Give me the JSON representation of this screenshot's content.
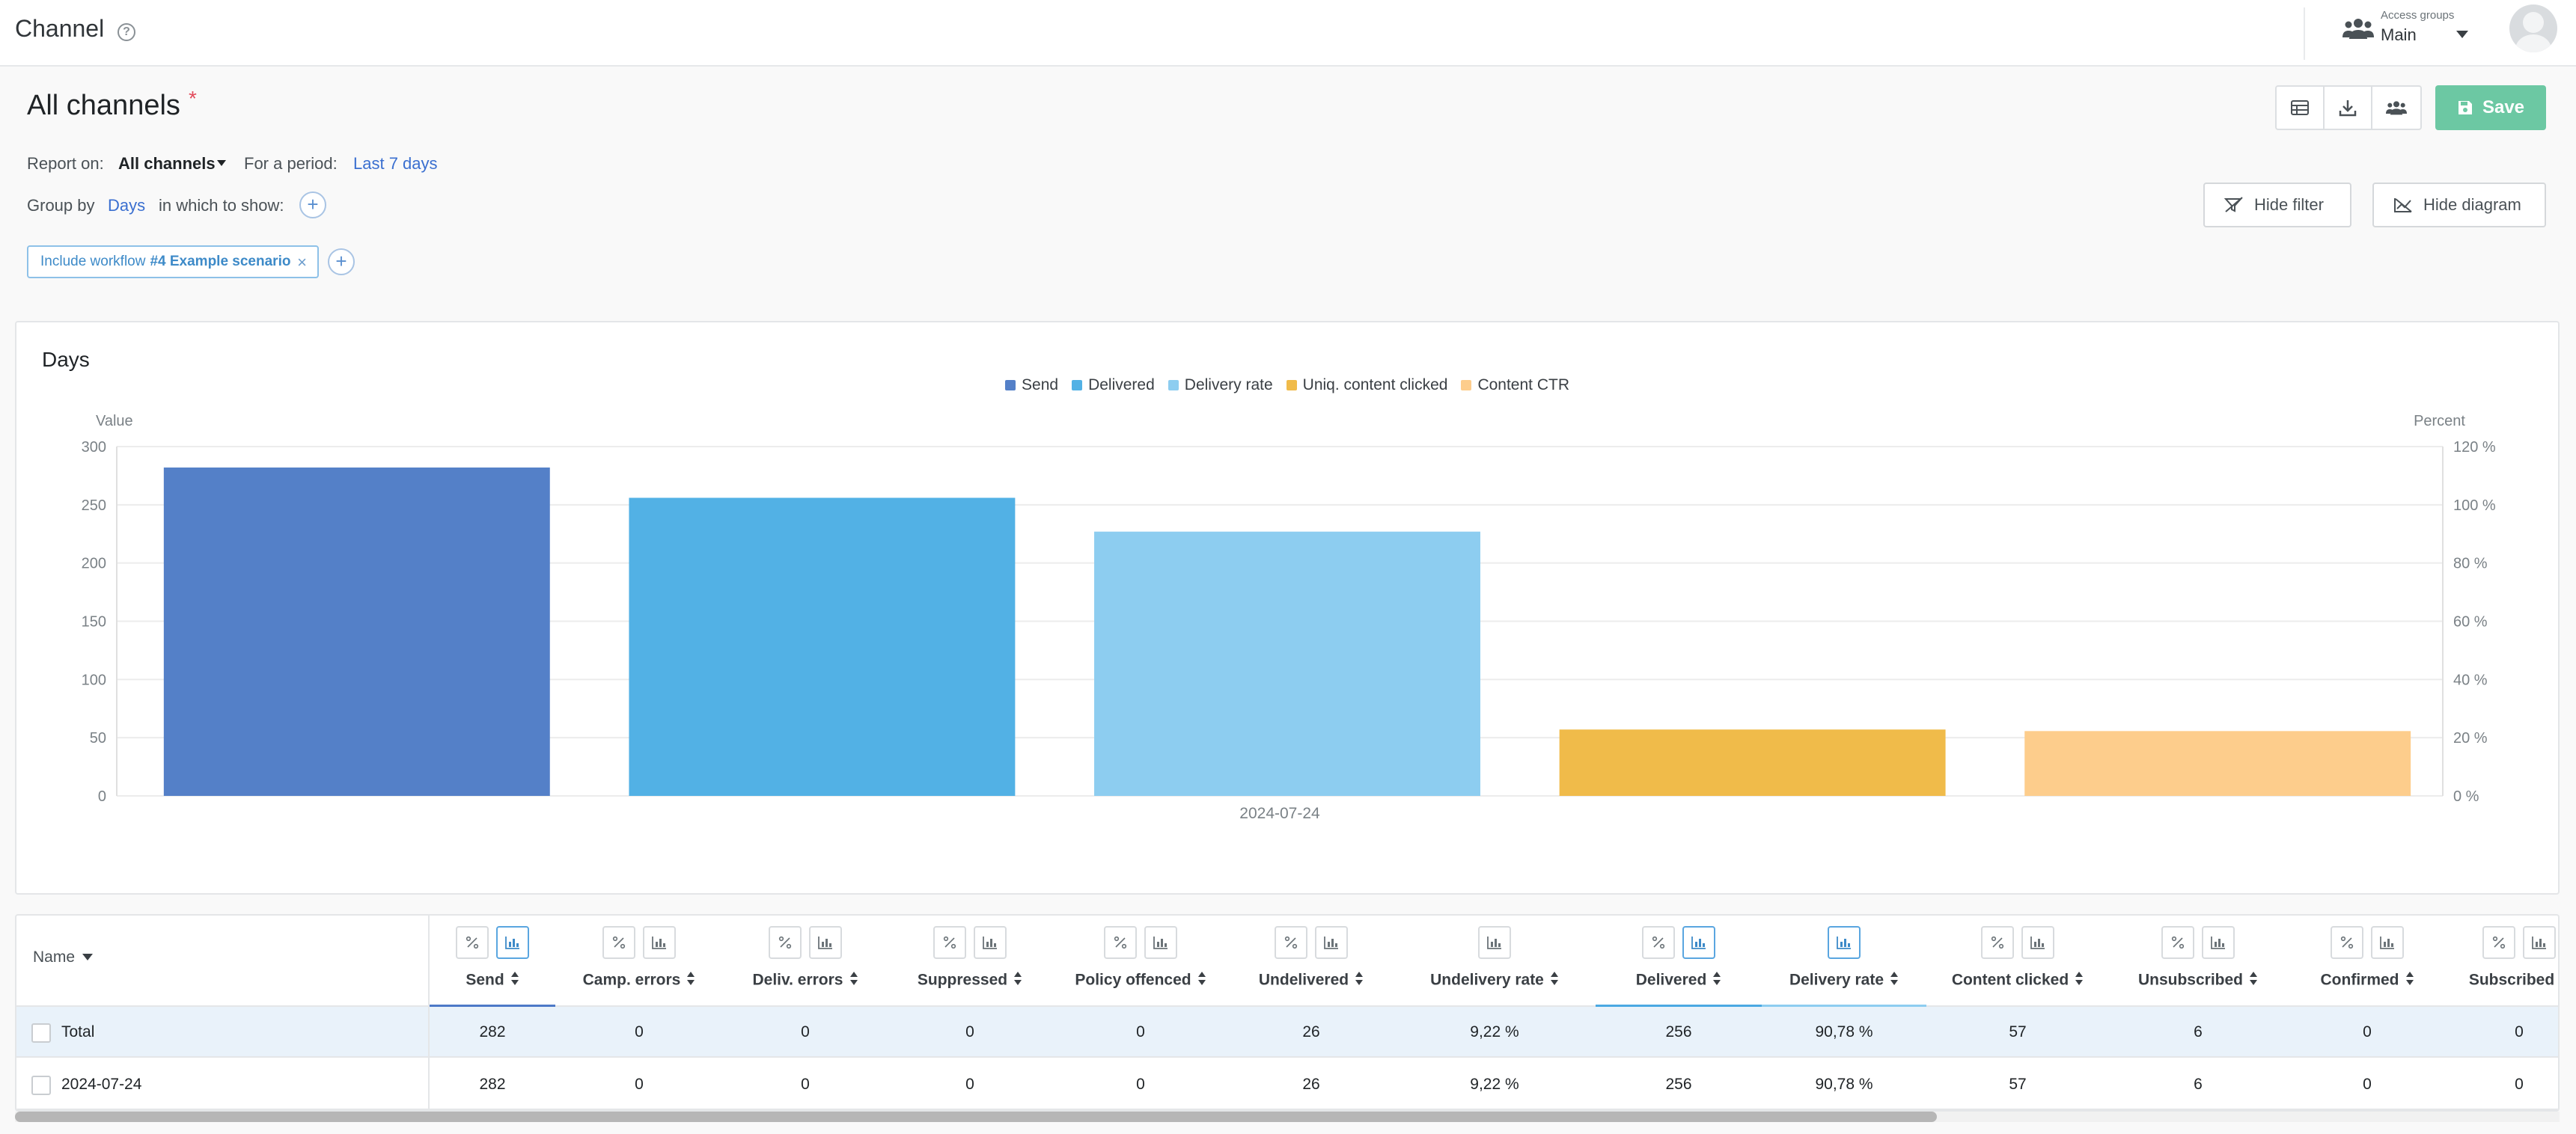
{
  "app": {
    "title": "Channel"
  },
  "access_groups": {
    "label": "Access groups",
    "value": "Main"
  },
  "page": {
    "title": "All channels",
    "asterisk": "*"
  },
  "toolbar": {
    "save_label": "Save"
  },
  "filters": {
    "report_on_label": "Report on:",
    "report_on_value": "All channels",
    "period_label": "For a period:",
    "period_value": "Last 7 days",
    "group_by_label": "Group by",
    "group_by_value": "Days",
    "show_label": "in which to show:",
    "plus": "+",
    "hide_filter": "Hide filter",
    "hide_diagram": "Hide diagram",
    "chip_prefix": "Include workflow",
    "chip_value": "#4 Example scenario",
    "chip_close": "×"
  },
  "chart_data": {
    "type": "bar",
    "title": "Days",
    "ylabel_left": "Value",
    "ylabel_right": "Percent",
    "categories": [
      "2024-07-24"
    ],
    "ylim": [
      0,
      300
    ],
    "ylim_right": [
      0,
      120
    ],
    "yticks_left": [
      "300",
      "250",
      "200",
      "150",
      "100",
      "50",
      "0"
    ],
    "yticks_right": [
      "120 %",
      "100 %",
      "80 %",
      "60 %",
      "40 %",
      "20 %",
      "0 %"
    ],
    "legend_position": "top-center",
    "grid": true,
    "series": [
      {
        "name": "Send",
        "value": 282,
        "color": "#5480c8",
        "axis": "left"
      },
      {
        "name": "Delivered",
        "value": 256,
        "color": "#52b1e5",
        "axis": "left"
      },
      {
        "name": "Delivery rate",
        "value": 90.78,
        "color": "#8dcdf0",
        "axis": "right"
      },
      {
        "name": "Uniq. content clicked",
        "value": 57,
        "color": "#f0bb4a",
        "axis": "left"
      },
      {
        "name": "Content CTR",
        "value": 22.27,
        "color": "#fdcd8c",
        "axis": "right"
      }
    ]
  },
  "table": {
    "name_header": "Name",
    "columns": [
      {
        "label": "Send",
        "icons": [
          "percent",
          "chart-active"
        ],
        "underline": "#4d79c7"
      },
      {
        "label": "Camp. errors",
        "icons": [
          "percent",
          "chart"
        ],
        "underline": ""
      },
      {
        "label": "Deliv. errors",
        "icons": [
          "percent",
          "chart"
        ],
        "underline": ""
      },
      {
        "label": "Suppressed",
        "icons": [
          "percent",
          "chart"
        ],
        "underline": ""
      },
      {
        "label": "Policy offenced",
        "icons": [
          "percent",
          "chart"
        ],
        "underline": ""
      },
      {
        "label": "Undelivered",
        "icons": [
          "percent",
          "chart"
        ],
        "underline": ""
      },
      {
        "label": "Undelivery rate",
        "icons": [
          "chart"
        ],
        "underline": ""
      },
      {
        "label": "Delivered",
        "icons": [
          "percent",
          "chart-active"
        ],
        "underline": "#4aa8e2"
      },
      {
        "label": "Delivery rate",
        "icons": [
          "chart-active"
        ],
        "underline": "#8dcdf0"
      },
      {
        "label": "Content clicked",
        "icons": [
          "percent",
          "chart"
        ],
        "underline": ""
      },
      {
        "label": "Unsubscribed",
        "icons": [
          "percent",
          "chart"
        ],
        "underline": ""
      },
      {
        "label": "Confirmed",
        "icons": [
          "percent",
          "chart"
        ],
        "underline": ""
      },
      {
        "label": "Subscribed",
        "icons": [
          "percent",
          "chart"
        ],
        "underline": ""
      }
    ],
    "rows": [
      {
        "name": "Total",
        "values": [
          "282",
          "0",
          "0",
          "0",
          "0",
          "26",
          "9,22 %",
          "256",
          "90,78 %",
          "57",
          "6",
          "0",
          "0"
        ]
      },
      {
        "name": "2024-07-24",
        "values": [
          "282",
          "0",
          "0",
          "0",
          "0",
          "26",
          "9,22 %",
          "256",
          "90,78 %",
          "57",
          "6",
          "0",
          "0"
        ]
      }
    ]
  }
}
